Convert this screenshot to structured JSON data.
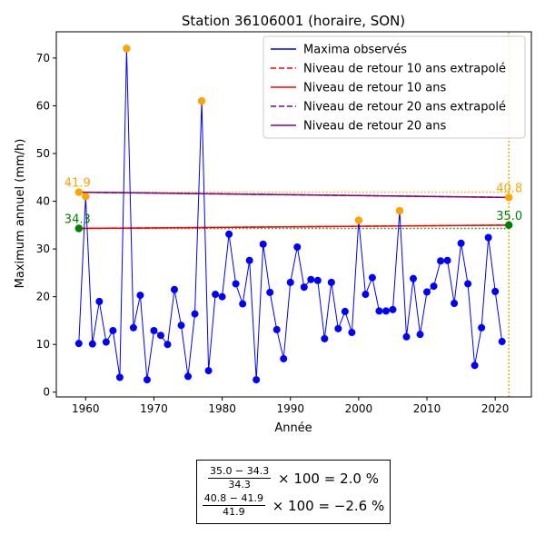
{
  "chart_data": {
    "type": "line",
    "title": "Station 36106001 (horaire, SON)",
    "xlabel": "Année",
    "ylabel": "Maximum annuel (mm/h)",
    "xlim": [
      1955.7,
      2025.3
    ],
    "ylim": [
      -1.0,
      75.5
    ],
    "xticks": [
      1960,
      1970,
      1980,
      1990,
      2000,
      2010,
      2020
    ],
    "yticks": [
      0,
      10,
      20,
      30,
      40,
      50,
      60,
      70
    ],
    "grid": false,
    "legend_position": "top-right",
    "series": [
      {
        "name": "Maxima observés",
        "color": "#0000ff",
        "x": [
          1959,
          1960,
          1961,
          1962,
          1963,
          1964,
          1965,
          1966,
          1967,
          1968,
          1969,
          1970,
          1971,
          1972,
          1973,
          1974,
          1975,
          1976,
          1977,
          1978,
          1979,
          1980,
          1981,
          1982,
          1983,
          1984,
          1985,
          1986,
          1987,
          1988,
          1989,
          1990,
          1991,
          1992,
          1993,
          1994,
          1995,
          1996,
          1997,
          1998,
          1999,
          2000,
          2001,
          2002,
          2003,
          2004,
          2005,
          2006,
          2007,
          2008,
          2009,
          2010,
          2011,
          2012,
          2013,
          2014,
          2015,
          2016,
          2017,
          2018,
          2019,
          2020,
          2021
        ],
        "y": [
          10.2,
          41.0,
          10.1,
          19.0,
          10.5,
          12.9,
          3.1,
          72.0,
          13.5,
          20.3,
          2.6,
          12.9,
          11.9,
          10.0,
          21.5,
          14.0,
          3.3,
          16.4,
          61.0,
          4.5,
          20.5,
          20.0,
          33.1,
          22.7,
          18.5,
          27.6,
          2.6,
          31.0,
          20.9,
          13.1,
          7.0,
          23.0,
          30.4,
          22.0,
          23.6,
          23.4,
          11.2,
          23.0,
          13.3,
          16.9,
          12.5,
          36.0,
          20.5,
          24.0,
          17.0,
          17.0,
          17.3,
          38.0,
          11.6,
          23.8,
          12.1,
          21.0,
          22.2,
          27.5,
          27.6,
          18.6,
          31.2,
          22.7,
          5.6,
          13.5,
          32.4,
          21.1,
          10.6
        ]
      },
      {
        "name": "Niveau de retour 10 ans extrapolé",
        "color": "#ff0000",
        "style": "dashed",
        "x": [
          1959,
          2022
        ],
        "y": [
          34.3,
          35.0
        ]
      },
      {
        "name": "Niveau de retour 10 ans",
        "color": "#ff0000",
        "style": "solid",
        "x": [
          1959,
          2022
        ],
        "y": [
          34.3,
          35.0
        ]
      },
      {
        "name": "Niveau de retour 20 ans extrapolé",
        "color": "#800080",
        "style": "dashed",
        "x": [
          1959,
          2022
        ],
        "y": [
          41.9,
          40.8
        ]
      },
      {
        "name": "Niveau de retour 20 ans",
        "color": "#800080",
        "style": "solid",
        "x": [
          1959,
          2022
        ],
        "y": [
          41.9,
          40.8
        ]
      }
    ],
    "reference_lines": [
      {
        "y": 34.3,
        "x": [
          1959,
          2022
        ],
        "color": "#008000",
        "style": "dotted"
      },
      {
        "y": 41.9,
        "x": [
          1959,
          2022
        ],
        "color": "#ffa500",
        "style": "dotted"
      }
    ],
    "vertical_line": {
      "x": 2022,
      "color": "#ffa500",
      "style": "dotted"
    },
    "highlight_points": [
      {
        "x": 1959,
        "y": 41.9,
        "color": "#ffa500"
      },
      {
        "x": 1960,
        "y": 41.0,
        "color": "#ffa500"
      },
      {
        "x": 1966,
        "y": 72.0,
        "color": "#ffa500"
      },
      {
        "x": 1977,
        "y": 61.0,
        "color": "#ffa500"
      },
      {
        "x": 2000,
        "y": 36.0,
        "color": "#ffa500"
      },
      {
        "x": 2006,
        "y": 38.0,
        "color": "#ffa500"
      },
      {
        "x": 2022,
        "y": 40.8,
        "color": "#ffa500"
      },
      {
        "x": 1959,
        "y": 34.3,
        "color": "#008000"
      },
      {
        "x": 2022,
        "y": 35.0,
        "color": "#008000"
      }
    ],
    "annotations": [
      {
        "text": "41.9",
        "x": 1959,
        "y": 41.9,
        "color": "#ffa500",
        "side": "start"
      },
      {
        "text": "34.3",
        "x": 1959,
        "y": 34.3,
        "color": "#008000",
        "side": "start"
      },
      {
        "text": "35.0",
        "x": 2022,
        "y": 35.0,
        "color": "#008000",
        "side": "end"
      },
      {
        "text": "40.8",
        "x": 2022,
        "y": 40.8,
        "color": "#ffa500",
        "side": "end"
      }
    ]
  },
  "formula": {
    "line1": {
      "numerator": "35.0 − 34.3",
      "denominator": "34.3",
      "rest": " × 100 = 2.0 %"
    },
    "line2": {
      "numerator": "40.8 − 41.9",
      "denominator": "41.9",
      "rest": " × 100 = −2.6 %"
    }
  }
}
